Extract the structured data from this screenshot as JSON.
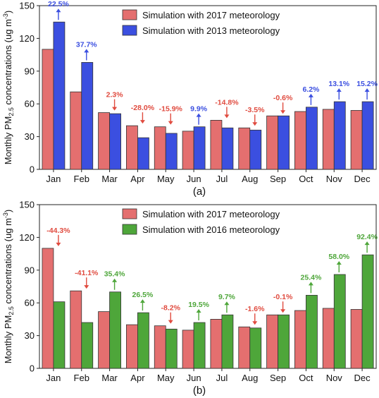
{
  "colors": {
    "y2017": "#e46f6f",
    "y2013": "#3b4fe0",
    "y2016": "#4ea63a",
    "increase_2013": "#3b4fe0",
    "increase_2016": "#4ea63a",
    "decrease": "#e04b3f"
  },
  "chart_data": [
    {
      "type": "bar",
      "panel_label": "(a)",
      "categories": [
        "Jan",
        "Feb",
        "Mar",
        "Apr",
        "May",
        "Jun",
        "Jul",
        "Aug",
        "Sep",
        "Oct",
        "Nov",
        "Dec"
      ],
      "ylabel_main": "Monthly PM",
      "ylabel_sub": "2.5",
      "ylabel_rest": " concentrations (ug m",
      "ylabel_sup": "-3",
      "ylabel_end": ")",
      "ylim": [
        0,
        150
      ],
      "yticks": [
        0,
        30,
        60,
        90,
        120,
        150
      ],
      "legend_position": "top-right",
      "series": [
        {
          "name": "Simulation with 2017 meteorology",
          "color": "#e46f6f",
          "values": [
            110,
            71,
            52,
            40,
            39,
            35,
            45,
            38,
            49,
            53,
            55,
            54
          ]
        },
        {
          "name": "Simulation with 2013 meteorology",
          "color": "#3b4fe0",
          "values": [
            135,
            98,
            51,
            29,
            33,
            39,
            38,
            36,
            49,
            57,
            62,
            62
          ]
        }
      ],
      "annotations": [
        {
          "label": "22.5%",
          "direction": "up"
        },
        {
          "label": "37.7%",
          "direction": "up"
        },
        {
          "label": "2.3%",
          "direction": "down"
        },
        {
          "label": "-28.0%",
          "direction": "down"
        },
        {
          "label": "-15.9%",
          "direction": "down"
        },
        {
          "label": "9.9%",
          "direction": "up"
        },
        {
          "label": "-14.8%",
          "direction": "down"
        },
        {
          "label": "-3.5%",
          "direction": "down"
        },
        {
          "label": "-0.6%",
          "direction": "down"
        },
        {
          "label": "6.2%",
          "direction": "up"
        },
        {
          "label": "13.1%",
          "direction": "up"
        },
        {
          "label": "15.2%",
          "direction": "up"
        }
      ]
    },
    {
      "type": "bar",
      "panel_label": "(b)",
      "categories": [
        "Jan",
        "Feb",
        "Mar",
        "Apr",
        "May",
        "Jun",
        "Jul",
        "Aug",
        "Sep",
        "Oct",
        "Nov",
        "Dec"
      ],
      "ylabel_main": "Monthly PM",
      "ylabel_sub": "2.5",
      "ylabel_rest": " concentrations (ug m",
      "ylabel_sup": "-3",
      "ylabel_end": ")",
      "ylim": [
        0,
        150
      ],
      "yticks": [
        0,
        30,
        60,
        90,
        120,
        150
      ],
      "legend_position": "top-right",
      "series": [
        {
          "name": "Simulation with 2017 meteorology",
          "color": "#e46f6f",
          "values": [
            110,
            71,
            52,
            40,
            39,
            35,
            45,
            38,
            49,
            53,
            55,
            54
          ]
        },
        {
          "name": "Simulation with 2016 meteorology",
          "color": "#4ea63a",
          "values": [
            61,
            42,
            70,
            51,
            36,
            42,
            49,
            37,
            49,
            67,
            86,
            104
          ]
        }
      ],
      "annotations": [
        {
          "label": "-44.3%",
          "direction": "down"
        },
        {
          "label": "-41.1%",
          "direction": "down"
        },
        {
          "label": "35.4%",
          "direction": "up"
        },
        {
          "label": "26.5%",
          "direction": "up"
        },
        {
          "label": "-8.2%",
          "direction": "down"
        },
        {
          "label": "19.5%",
          "direction": "up"
        },
        {
          "label": "9.7%",
          "direction": "up"
        },
        {
          "label": "-1.6%",
          "direction": "down"
        },
        {
          "label": "-0.1%",
          "direction": "down"
        },
        {
          "label": "25.4%",
          "direction": "up"
        },
        {
          "label": "58.0%",
          "direction": "up"
        },
        {
          "label": "92.4%",
          "direction": "up"
        }
      ]
    }
  ]
}
